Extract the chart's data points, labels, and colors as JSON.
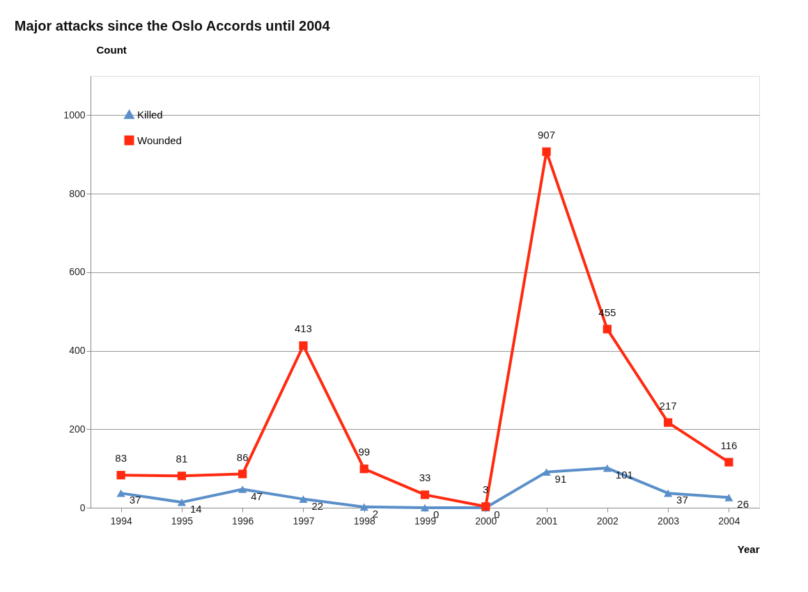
{
  "chart_data": {
    "type": "line",
    "title": "Major attacks since the Oslo Accords until 2004",
    "xlabel": "Year",
    "ylabel": "Count",
    "categories": [
      "1994",
      "1995",
      "1996",
      "1997",
      "1998",
      "1999",
      "2000",
      "2001",
      "2002",
      "2003",
      "2004"
    ],
    "series": [
      {
        "name": "Killed",
        "color": "#5b8fc9",
        "marker": "triangle",
        "values": [
          37,
          14,
          47,
          22,
          2,
          0,
          0,
          91,
          101,
          37,
          26
        ]
      },
      {
        "name": "Wounded",
        "color": "#ff2a0f",
        "marker": "square",
        "values": [
          83,
          81,
          86,
          413,
          99,
          33,
          3,
          907,
          455,
          217,
          116
        ]
      }
    ],
    "ylim": [
      0,
      1100
    ],
    "yticks": [
      0,
      200,
      400,
      600,
      800,
      1000
    ],
    "grid": "y",
    "legend": "top left",
    "data_labels": true,
    "line_style": "solid"
  }
}
